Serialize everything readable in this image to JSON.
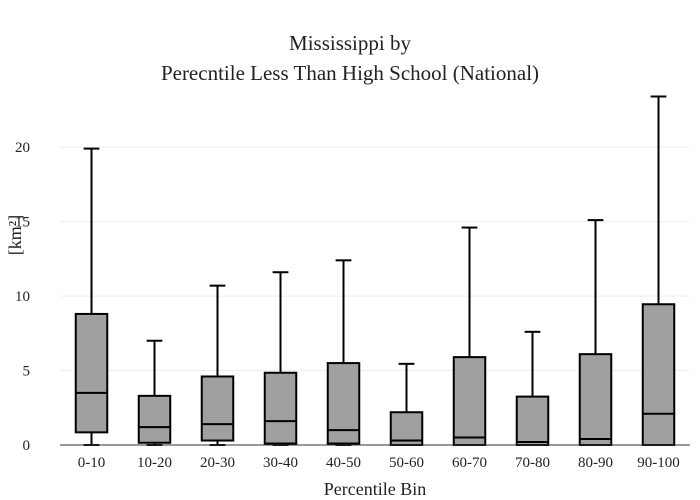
{
  "chart_data": {
    "type": "box",
    "title_lines": [
      "Mississippi  by",
      "Perecntile Less Than High School (National)"
    ],
    "xlabel": "Percentile Bin",
    "ylabel": "[km²]",
    "ylim": [
      0,
      23.5
    ],
    "yticks": [
      0,
      5,
      10,
      15,
      20
    ],
    "grid": true,
    "categories": [
      "0-10",
      "10-20",
      "20-30",
      "30-40",
      "40-50",
      "50-60",
      "60-70",
      "70-80",
      "80-90",
      "90-100"
    ],
    "boxes": [
      {
        "min": 0.0,
        "q1": 0.85,
        "median": 3.5,
        "q3": 8.8,
        "max": 19.9
      },
      {
        "min": 0.0,
        "q1": 0.15,
        "median": 1.2,
        "q3": 3.3,
        "max": 7.0
      },
      {
        "min": 0.0,
        "q1": 0.3,
        "median": 1.4,
        "q3": 4.6,
        "max": 10.7
      },
      {
        "min": 0.0,
        "q1": 0.1,
        "median": 1.6,
        "q3": 4.85,
        "max": 11.6
      },
      {
        "min": 0.0,
        "q1": 0.1,
        "median": 1.0,
        "q3": 5.5,
        "max": 12.4
      },
      {
        "min": 0.0,
        "q1": 0.0,
        "median": 0.3,
        "q3": 2.2,
        "max": 5.45
      },
      {
        "min": 0.0,
        "q1": 0.0,
        "median": 0.5,
        "q3": 5.9,
        "max": 14.6
      },
      {
        "min": 0.0,
        "q1": 0.0,
        "median": 0.2,
        "q3": 3.25,
        "max": 7.6
      },
      {
        "min": 0.0,
        "q1": 0.0,
        "median": 0.4,
        "q3": 6.1,
        "max": 15.1
      },
      {
        "min": 0.0,
        "q1": 0.0,
        "median": 2.1,
        "q3": 9.45,
        "max": 23.4
      }
    ],
    "colors": {
      "box_fill": "#a0a0a0",
      "box_stroke": "#000000",
      "grid": "#eeeeee"
    }
  }
}
